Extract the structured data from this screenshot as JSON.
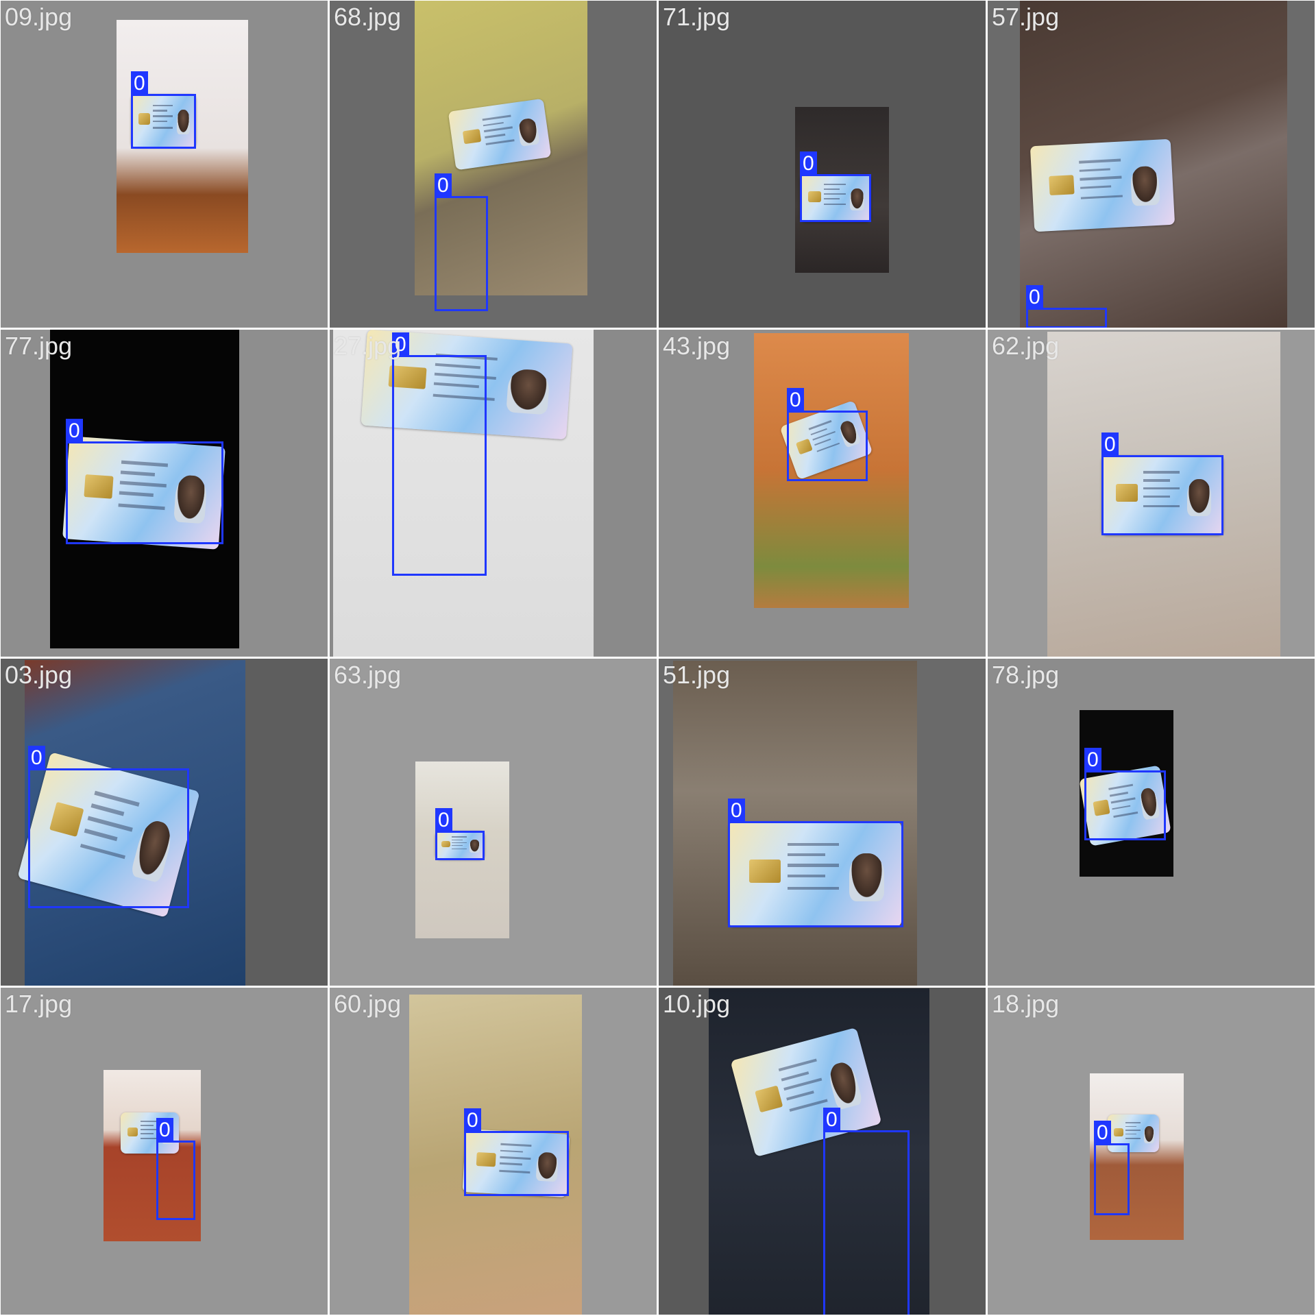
{
  "grid": {
    "columns": 4,
    "rows": 4,
    "box_color": "#1f37ff",
    "tiles": [
      {
        "filename": "09.jpg",
        "scene": "gift-bag-table",
        "boxes": [
          {
            "label": "0"
          }
        ]
      },
      {
        "filename": "68.jpg",
        "scene": "hand-hallway",
        "boxes": [
          {
            "label": "0"
          }
        ]
      },
      {
        "filename": "71.jpg",
        "scene": "dark-surface",
        "boxes": [
          {
            "label": "0"
          }
        ]
      },
      {
        "filename": "57.jpg",
        "scene": "wood-table",
        "boxes": [
          {
            "label": "0"
          }
        ]
      },
      {
        "filename": "77.jpg",
        "scene": "black-background",
        "boxes": [
          {
            "label": "0"
          }
        ]
      },
      {
        "filename": "27.jpg",
        "scene": "paper-page",
        "boxes": [
          {
            "label": "0"
          }
        ]
      },
      {
        "filename": "43.jpg",
        "scene": "sand-hand",
        "boxes": [
          {
            "label": "0"
          }
        ]
      },
      {
        "filename": "62.jpg",
        "scene": "hand-floor",
        "boxes": [
          {
            "label": "0"
          }
        ]
      },
      {
        "filename": "03.jpg",
        "scene": "jeans-knee",
        "boxes": [
          {
            "label": "0"
          }
        ]
      },
      {
        "filename": "63.jpg",
        "scene": "hand-floor-small",
        "boxes": [
          {
            "label": "0"
          }
        ]
      },
      {
        "filename": "51.jpg",
        "scene": "wood-table-card",
        "boxes": [
          {
            "label": "0"
          }
        ]
      },
      {
        "filename": "78.jpg",
        "scene": "dark-card",
        "boxes": [
          {
            "label": "0"
          }
        ]
      },
      {
        "filename": "17.jpg",
        "scene": "gift-bag-table-small",
        "boxes": [
          {
            "label": "0"
          }
        ]
      },
      {
        "filename": "60.jpg",
        "scene": "hand-floor-card",
        "boxes": [
          {
            "label": "0"
          }
        ]
      },
      {
        "filename": "10.jpg",
        "scene": "dark-chair-card",
        "boxes": [
          {
            "label": "0"
          }
        ]
      },
      {
        "filename": "18.jpg",
        "scene": "gift-bag-table-small",
        "boxes": [
          {
            "label": "0"
          }
        ]
      }
    ]
  }
}
